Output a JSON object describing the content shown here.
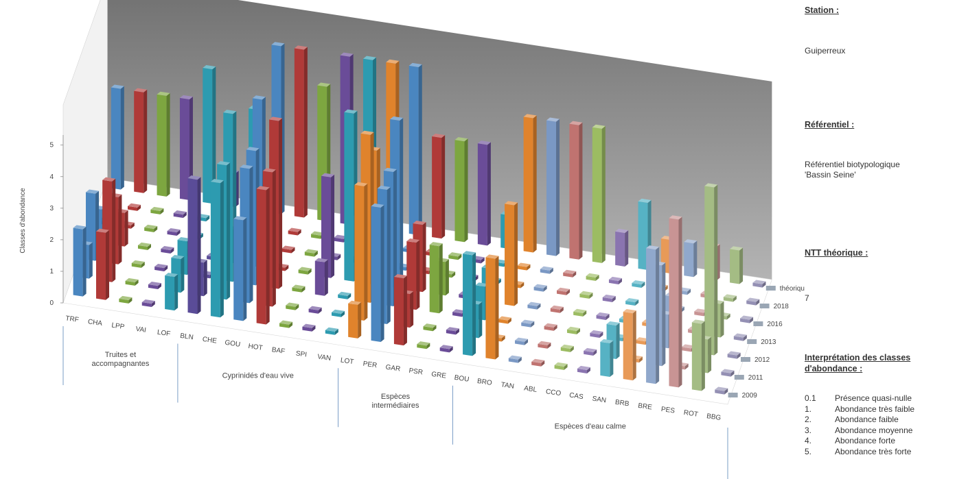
{
  "panel": {
    "station_label": "Station :",
    "station_value": "Guiperreux",
    "ref_label": "Référentiel :",
    "ref_value_1": "Référentiel  biotypologique",
    "ref_value_2": "'Bassin  Seine'",
    "ntt_label": "NTT  théorique :",
    "ntt_value": "7",
    "interp_label_1": "Interprétation des classes",
    "interp_label_2": "d'abondance :",
    "legend": [
      {
        "key": "0.1",
        "text": "Présence  quasi-nulle"
      },
      {
        "key": "1.",
        "text": "Abondance  très faible"
      },
      {
        "key": "2.",
        "text": "Abondance  faible"
      },
      {
        "key": "3.",
        "text": "Abondance  moyenne"
      },
      {
        "key": "4.",
        "text": "Abondance  forte"
      },
      {
        "key": "5.",
        "text": "Abondance  très forte"
      }
    ]
  },
  "chart_data": {
    "type": "bar",
    "subtype": "3d-bar",
    "ylabel": "Classes d'abondance",
    "ylim": [
      0,
      5
    ],
    "yticks": [
      "0",
      "1",
      "2",
      "3",
      "4",
      "5"
    ],
    "categories": [
      "TRF",
      "CHA",
      "LPP",
      "VAI",
      "LOF",
      "BLN",
      "CHE",
      "GOU",
      "HOT",
      "BAF",
      "SPI",
      "VAN",
      "LOT",
      "PER",
      "GAR",
      "PSR",
      "GRE",
      "BOU",
      "BRO",
      "TAN",
      "ABL",
      "CCO",
      "CAS",
      "SAN",
      "BRB",
      "BRE",
      "PES",
      "ROT",
      "BBG"
    ],
    "groups": [
      {
        "label": [
          "Truites et",
          "accompagnantes"
        ],
        "start": 0,
        "end": 4
      },
      {
        "label": [
          "Cyprinidés d'eau vive"
        ],
        "start": 5,
        "end": 11
      },
      {
        "label": [
          "Espèces",
          "intermédiaires"
        ],
        "start": 12,
        "end": 16
      },
      {
        "label": [
          "Espèces d'eau calme"
        ],
        "start": 17,
        "end": 28
      }
    ],
    "series": [
      {
        "name": "théorique",
        "values": [
          3,
          3,
          3,
          3,
          4,
          1,
          3,
          5,
          5,
          4,
          5,
          5,
          5,
          5,
          3,
          3,
          3,
          1,
          4,
          4,
          4,
          4,
          1,
          2,
          1,
          1,
          1,
          1,
          0.1
        ]
      },
      {
        "name": "2018",
        "values": [
          0.1,
          0.1,
          0.1,
          0.1,
          0.1,
          1,
          1,
          1,
          0.1,
          0.1,
          0.1,
          0.1,
          0.1,
          0.1,
          0.1,
          0.1,
          0.1,
          0.1,
          0.1,
          0.1,
          0.1,
          0.1,
          0.1,
          0.1,
          0.1,
          0.1,
          0.1,
          0.1,
          0.1
        ]
      },
      {
        "name": "2016",
        "values": [
          0.1,
          0.1,
          0.1,
          0.1,
          0.1,
          0.1,
          0.1,
          0.1,
          0.1,
          0.1,
          0.1,
          0.1,
          0.1,
          0.1,
          0.1,
          0.1,
          0.1,
          0.1,
          0.1,
          0.1,
          0.1,
          0.1,
          0.1,
          0.1,
          0.1,
          0.1,
          0.1,
          0.1,
          0.1
        ]
      },
      {
        "name": "2013",
        "values": [
          1,
          1,
          0.1,
          0.1,
          0.1,
          0.1,
          1,
          5,
          0.1,
          0.1,
          3,
          5,
          4,
          5,
          2,
          1,
          0.1,
          1,
          3,
          0.1,
          0.1,
          0.1,
          0.1,
          0.1,
          0.1,
          1,
          0.1,
          1,
          0.1
        ]
      },
      {
        "name": "2012",
        "values": [
          2,
          2,
          0.1,
          0.1,
          1,
          0.1,
          5,
          4,
          5,
          0.1,
          1,
          0.1,
          5,
          4,
          2,
          2,
          0.1,
          1,
          0.1,
          0.1,
          0.1,
          0.1,
          0.1,
          0.1,
          0.1,
          1,
          0.1,
          5,
          0.1
        ]
      },
      {
        "name": "2011",
        "values": [
          1,
          3,
          0.1,
          0.1,
          1,
          1,
          4,
          4,
          4,
          0.1,
          0.1,
          0.1,
          4,
          4,
          1,
          0.1,
          0.1,
          1,
          0.1,
          0.1,
          0.1,
          0.1,
          0.1,
          1,
          0.1,
          3,
          0.1,
          1,
          0.1
        ]
      },
      {
        "name": "2009",
        "values": [
          2,
          2,
          0.1,
          0.1,
          1,
          4,
          4,
          3,
          4,
          0.1,
          0.1,
          0.1,
          1,
          4,
          2,
          0.1,
          0.1,
          3,
          3,
          0.1,
          0.1,
          0.1,
          0.1,
          1,
          2,
          4,
          5,
          2,
          0.1
        ]
      }
    ],
    "category_colors": [
      "#4a86c0",
      "#b03a38",
      "#7da640",
      "#6a4c98",
      "#2d9bb0",
      "#5a4c98",
      "#2d9bb0",
      "#4a86c0",
      "#b03a38",
      "#7da640",
      "#6a4c98",
      "#2d9bb0",
      "#e0832c",
      "#4a86c0",
      "#b03a38",
      "#7da640",
      "#6a4c98",
      "#2d9bb0",
      "#e0832c",
      "#7a98c4",
      "#c07370",
      "#9cbc62",
      "#8a74b0",
      "#56b2c4",
      "#e89a58",
      "#90a8cc",
      "#c89494",
      "#a4bc84",
      "#9490b4"
    ],
    "wall_color": "#8a8a8a",
    "legend_position": "right",
    "grid": false
  }
}
